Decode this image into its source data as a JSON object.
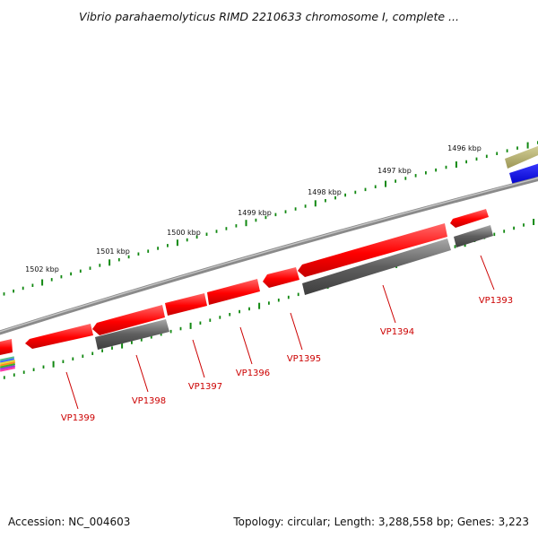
{
  "title": "Vibrio parahaemolyticus RIMD 2210633 chromosome I, complete ...",
  "footer": {
    "accession": "Accession: NC_004603",
    "topology": "Topology: circular; Length: 3,288,558 bp; Genes: 3,223"
  },
  "kbp_labels": [
    "1496 kbp",
    "1497 kbp",
    "1498 kbp",
    "1499 kbp",
    "1500 kbp",
    "1501 kbp",
    "1502 kbp"
  ],
  "gene_labels": [
    "VP1393",
    "VP1394",
    "VP1395",
    "VP1396",
    "VP1397",
    "VP1398",
    "VP1399"
  ],
  "colors": {
    "backbone": "#8a8a8a",
    "gene": "#ff0000",
    "cds": "#5e5e5e",
    "tick": "#118811",
    "label": "#cc0000",
    "olive": "#b3ad6a",
    "blue": "#0000ee"
  }
}
